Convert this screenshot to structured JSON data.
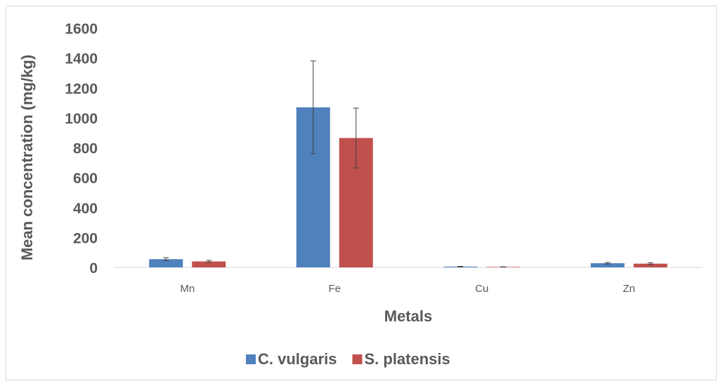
{
  "chart_data": {
    "type": "bar",
    "categories": [
      "Mn",
      "Fe",
      "Cu",
      "Zn"
    ],
    "series": [
      {
        "name": "C. vulgaris",
        "color": "#4f81bd",
        "values": [
          55,
          1070,
          5,
          28
        ],
        "errors": [
          10,
          310,
          2,
          5
        ]
      },
      {
        "name": "S. platensis",
        "color": "#c0504d",
        "values": [
          40,
          865,
          3,
          25
        ],
        "errors": [
          7,
          200,
          1,
          6
        ]
      }
    ],
    "xlabel": "Metals",
    "ylabel": "Mean concentration (mg/kg)",
    "ylim": [
      0,
      1600
    ],
    "yticks": [
      0,
      200,
      400,
      600,
      800,
      1000,
      1200,
      1400,
      1600
    ],
    "grid": false,
    "legend": "bottom",
    "error_bars": true
  }
}
